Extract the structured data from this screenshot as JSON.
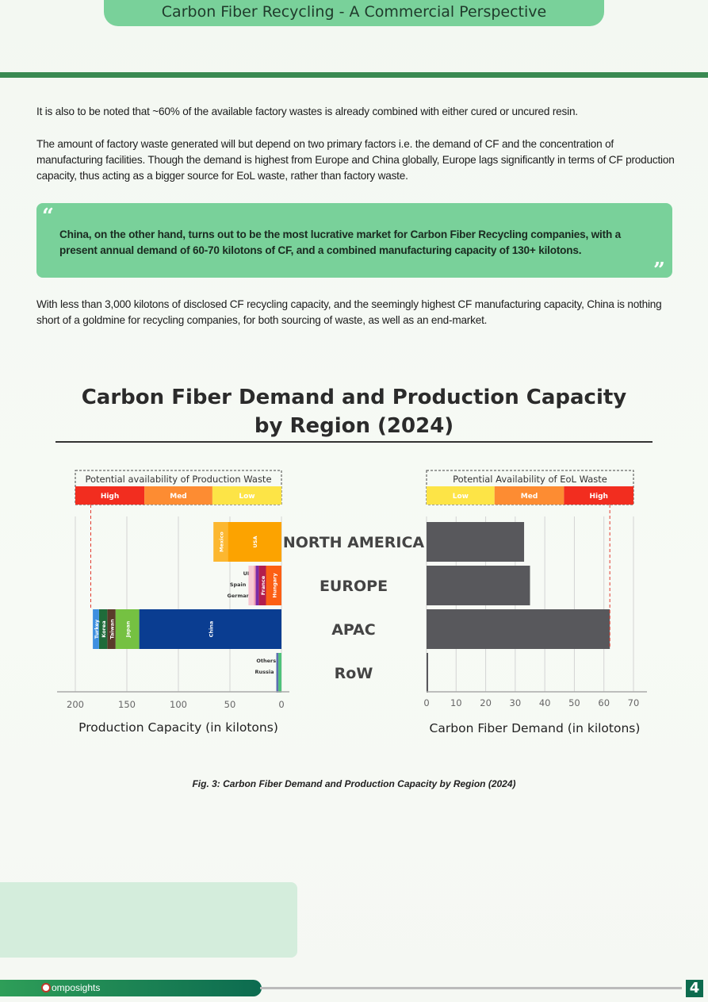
{
  "header": {
    "title": "Carbon Fiber Recycling - A Commercial Perspective"
  },
  "body": {
    "para1": "It is also to be noted that ~60% of the available factory wastes is already combined with either cured or uncured resin.",
    "para2": "The amount of factory waste generated will but depend on two primary factors i.e. the demand of CF and the concentration of manufacturing facilities. Though the demand is highest from Europe and China globally, Europe lags significantly in terms of CF production capacity, thus acting as a bigger source for EoL waste, rather than factory waste.",
    "quote": "China, on the other hand, turns out to be the most lucrative market for Carbon Fiber Recycling companies, with a present annual demand of 60-70 kilotons of CF, and a combined manufacturing capacity of 130+ kilotons.",
    "para3": "With less than 3,000 kilotons of disclosed CF recycling capacity, and the seemingly highest CF manufacturing capacity, China is nothing short of a goldmine for recycling companies, for both sourcing of waste, as well as an end-market."
  },
  "chart_data": {
    "type": "bar",
    "title": "Carbon Fiber Demand and Production Capacity by Region (2024)",
    "title_line1": "Carbon Fiber Demand and Production Capacity",
    "title_line2": "by Region (2024)",
    "regions": [
      "NORTH AMERICA",
      "EUROPE",
      "APAC",
      "RoW"
    ],
    "left": {
      "xlabel": "Production Capacity (in kilotons)",
      "xlim": [
        0,
        200
      ],
      "ticks": [
        200,
        150,
        100,
        50,
        0
      ],
      "legend_title": "Potential availability of Production Waste",
      "bands": [
        {
          "label": "High",
          "from": 200,
          "to": 133,
          "color": "#f22d1f"
        },
        {
          "label": "Med",
          "from": 133,
          "to": 67,
          "color": "#fd8c32"
        },
        {
          "label": "Low",
          "from": 67,
          "to": 0,
          "color": "#fde446"
        }
      ],
      "reference_line": 185,
      "segments": [
        [
          {
            "label": "USA",
            "value": 52,
            "color": "#fca300",
            "text": "#ffffff"
          },
          {
            "label": "Mexico",
            "value": 14,
            "color": "#fcb730",
            "text": "#ffffff"
          }
        ],
        [
          {
            "label": "Hungary",
            "value": 15,
            "color": "#fc5f14",
            "text": "#ffffff"
          },
          {
            "label": "France",
            "value": 7,
            "color": "#b31d4d",
            "text": "#ffffff"
          },
          {
            "label": "Germany",
            "value": 3,
            "color": "#7b2aa6",
            "text": "#ffffff"
          },
          {
            "label": "UK",
            "value": 2,
            "color": "#f2a5b5",
            "text": "#333333"
          },
          {
            "label": "Spain",
            "value": 5,
            "color": "#f7c7d2",
            "text": "#333333"
          }
        ],
        [
          {
            "label": "China",
            "value": 138,
            "color": "#0a3d91",
            "text": "#ffffff"
          },
          {
            "label": "Japan",
            "value": 23,
            "color": "#75c142",
            "text": "#ffffff"
          },
          {
            "label": "Taiwan",
            "value": 8,
            "color": "#5a3a2a",
            "text": "#ffffff"
          },
          {
            "label": "Korea",
            "value": 8,
            "color": "#1f6b3a",
            "text": "#ffffff"
          },
          {
            "label": "Turkey",
            "value": 6,
            "color": "#3e8fe0",
            "text": "#ffffff"
          }
        ],
        [
          {
            "label": "Others",
            "value": 3,
            "color": "#4fc27a",
            "text": "#ffffff"
          },
          {
            "label": "Russia",
            "value": 2,
            "color": "#5b6fb0",
            "text": "#ffffff"
          }
        ]
      ]
    },
    "right": {
      "xlabel": "Carbon Fiber Demand (in kilotons)",
      "xlim": [
        0,
        70
      ],
      "ticks": [
        0,
        10,
        20,
        30,
        40,
        50,
        60,
        70
      ],
      "legend_title": "Potential Availability of EoL Waste",
      "bands": [
        {
          "label": "Low",
          "from": 0,
          "to": 23,
          "color": "#fde446"
        },
        {
          "label": "Med",
          "from": 23,
          "to": 46.5,
          "color": "#fd8c32"
        },
        {
          "label": "High",
          "from": 46.5,
          "to": 70,
          "color": "#f22d1f"
        }
      ],
      "reference_line": 62,
      "values": [
        33,
        35,
        62,
        0.5
      ],
      "bar_color": "#58585c"
    }
  },
  "caption": "Fig. 3: Carbon Fiber Demand and Production Capacity by Region (2024)",
  "footer": {
    "brand_rest": "omposights",
    "page_number": "4"
  }
}
